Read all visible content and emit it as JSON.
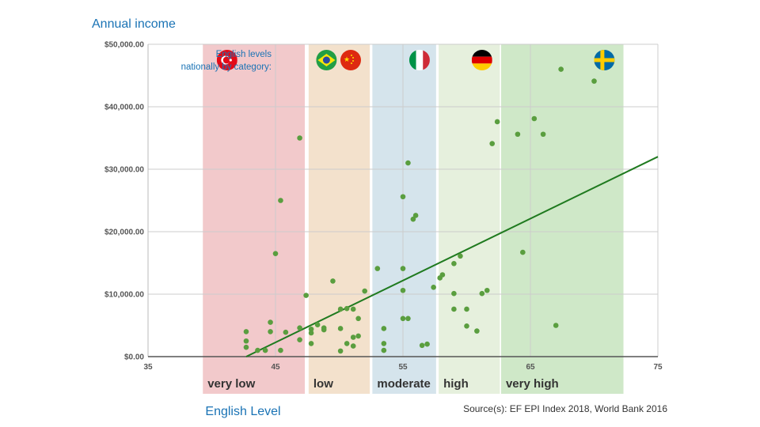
{
  "chart_data": {
    "type": "scatter",
    "title": "Annual income",
    "xlabel": "English Level",
    "ylabel": "",
    "xlim": [
      35,
      75
    ],
    "ylim": [
      0,
      50000
    ],
    "x_ticks": [
      "35",
      "45",
      "55",
      "65",
      "75"
    ],
    "x_tick_values": [
      35,
      45,
      55,
      65,
      75
    ],
    "y_ticks": [
      "$0.00",
      "$10,000.00",
      "$20,000.00",
      "$30,000.00",
      "$40,000.00",
      "$50,000.00"
    ],
    "y_tick_values": [
      0,
      10000,
      20000,
      30000,
      40000,
      50000
    ],
    "grid": true,
    "source": "Source(s): EF EPI Index 2018, World Bank 2016",
    "legend_caption_line1": "English levels",
    "legend_caption_line2": "nationally by category:",
    "bands": [
      {
        "label": "very low",
        "x_from": 39.3,
        "x_to": 47.3,
        "color": "#f2c9cb",
        "flags": [
          "turkey-flag"
        ]
      },
      {
        "label": "low",
        "x_from": 47.6,
        "x_to": 52.4,
        "color": "#f3e1cc",
        "flags": [
          "brazil-flag",
          "china-flag"
        ]
      },
      {
        "label": "moderate",
        "x_from": 52.6,
        "x_to": 57.6,
        "color": "#d5e4ec",
        "flags": [
          "italy-flag"
        ]
      },
      {
        "label": "high",
        "x_from": 57.8,
        "x_to": 62.6,
        "color": "#e6f0dd",
        "flags": [
          "germany-flag"
        ]
      },
      {
        "label": "very high",
        "x_from": 62.7,
        "x_to": 72.3,
        "color": "#cfe8c8",
        "flags": [
          "sweden-flag"
        ]
      }
    ],
    "trendline": {
      "x": [
        42.7,
        75
      ],
      "y": [
        0,
        32000
      ],
      "color": "#1f7a1f"
    },
    "point_color": "#5a9e3f",
    "points": [
      {
        "x": 42.7,
        "y": 4000
      },
      {
        "x": 42.7,
        "y": 2500
      },
      {
        "x": 42.7,
        "y": 1500
      },
      {
        "x": 43.6,
        "y": 1000
      },
      {
        "x": 44.2,
        "y": 1000
      },
      {
        "x": 44.6,
        "y": 5500
      },
      {
        "x": 44.6,
        "y": 4000
      },
      {
        "x": 45.4,
        "y": 1000
      },
      {
        "x": 45.4,
        "y": 25000
      },
      {
        "x": 45.0,
        "y": 16500
      },
      {
        "x": 45.8,
        "y": 3900
      },
      {
        "x": 46.9,
        "y": 4600
      },
      {
        "x": 46.9,
        "y": 2700
      },
      {
        "x": 46.9,
        "y": 35000
      },
      {
        "x": 47.4,
        "y": 9800
      },
      {
        "x": 47.8,
        "y": 4400
      },
      {
        "x": 47.8,
        "y": 3800
      },
      {
        "x": 47.8,
        "y": 2100
      },
      {
        "x": 48.3,
        "y": 5100
      },
      {
        "x": 48.8,
        "y": 4600
      },
      {
        "x": 48.8,
        "y": 4300
      },
      {
        "x": 49.5,
        "y": 12100
      },
      {
        "x": 50.1,
        "y": 7600
      },
      {
        "x": 50.1,
        "y": 4500
      },
      {
        "x": 50.1,
        "y": 900
      },
      {
        "x": 50.6,
        "y": 7700
      },
      {
        "x": 50.6,
        "y": 2100
      },
      {
        "x": 51.1,
        "y": 7600
      },
      {
        "x": 51.1,
        "y": 3100
      },
      {
        "x": 51.1,
        "y": 1700
      },
      {
        "x": 51.5,
        "y": 6100
      },
      {
        "x": 51.5,
        "y": 3300
      },
      {
        "x": 52.0,
        "y": 10500
      },
      {
        "x": 53.0,
        "y": 14100
      },
      {
        "x": 53.5,
        "y": 4500
      },
      {
        "x": 53.5,
        "y": 2100
      },
      {
        "x": 53.5,
        "y": 1000
      },
      {
        "x": 55.0,
        "y": 25600
      },
      {
        "x": 55.0,
        "y": 14100
      },
      {
        "x": 55.0,
        "y": 10600
      },
      {
        "x": 55.0,
        "y": 6100
      },
      {
        "x": 55.4,
        "y": 31000
      },
      {
        "x": 55.4,
        "y": 6100
      },
      {
        "x": 55.8,
        "y": 22000
      },
      {
        "x": 56.0,
        "y": 22600
      },
      {
        "x": 56.5,
        "y": 1800
      },
      {
        "x": 56.9,
        "y": 2000
      },
      {
        "x": 57.4,
        "y": 11100
      },
      {
        "x": 57.9,
        "y": 12600
      },
      {
        "x": 58.1,
        "y": 13100
      },
      {
        "x": 59.0,
        "y": 14900
      },
      {
        "x": 59.0,
        "y": 10100
      },
      {
        "x": 59.0,
        "y": 7600
      },
      {
        "x": 59.5,
        "y": 16100
      },
      {
        "x": 60.0,
        "y": 7600
      },
      {
        "x": 60.0,
        "y": 4900
      },
      {
        "x": 60.8,
        "y": 4100
      },
      {
        "x": 61.2,
        "y": 10100
      },
      {
        "x": 61.6,
        "y": 10600
      },
      {
        "x": 62.0,
        "y": 34100
      },
      {
        "x": 62.4,
        "y": 37600
      },
      {
        "x": 64.0,
        "y": 35600
      },
      {
        "x": 64.4,
        "y": 16700
      },
      {
        "x": 65.3,
        "y": 38100
      },
      {
        "x": 66.0,
        "y": 35600
      },
      {
        "x": 67.0,
        "y": 5000
      },
      {
        "x": 67.4,
        "y": 46000
      },
      {
        "x": 70.0,
        "y": 44100
      }
    ]
  }
}
